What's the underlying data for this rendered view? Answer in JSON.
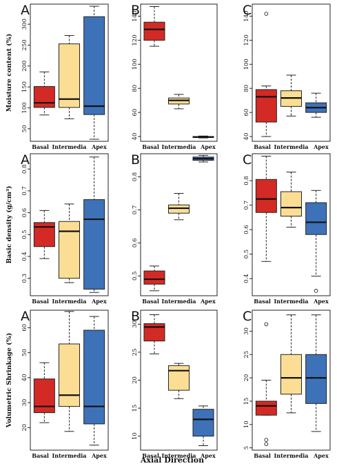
{
  "figure": {
    "xlabel": "Axial Direction",
    "colors": {
      "Basal": "#d42a25",
      "Intermedia": "#fbde94",
      "Apex": "#3e72b8"
    }
  },
  "chart_data": [
    {
      "type": "box",
      "panel": "A",
      "ylabel": "Moisture content (%)",
      "ylim": [
        20,
        348
      ],
      "yticks": [
        50,
        100,
        150,
        200,
        250,
        300
      ],
      "categories": [
        "Basal",
        "Intermedia",
        "Apex"
      ],
      "boxes": [
        {
          "min": 83,
          "q1": 101,
          "median": 112,
          "q3": 151,
          "max": 186,
          "outliers": []
        },
        {
          "min": 74,
          "q1": 101,
          "median": 121,
          "q3": 253,
          "max": 273,
          "outliers": []
        },
        {
          "min": 25,
          "q1": 84,
          "median": 104,
          "q3": 318,
          "max": 343,
          "outliers": []
        }
      ]
    },
    {
      "type": "box",
      "panel": "B",
      "ylabel": "",
      "ylim": [
        36,
        150
      ],
      "yticks": [
        40,
        60,
        80,
        100,
        120,
        140
      ],
      "categories": [
        "Basal",
        "Intermedia",
        "Apex"
      ],
      "boxes": [
        {
          "min": 115,
          "q1": 120,
          "median": 129,
          "q3": 135,
          "max": 148,
          "outliers": []
        },
        {
          "min": 63,
          "q1": 67,
          "median": 70,
          "q3": 72,
          "max": 75,
          "outliers": []
        },
        {
          "min": 38.8,
          "q1": 39.2,
          "median": 39.6,
          "q3": 40,
          "max": 40.4,
          "outliers": []
        }
      ]
    },
    {
      "type": "box",
      "panel": "C",
      "ylabel": "",
      "ylim": [
        36,
        150
      ],
      "yticks": [
        40,
        60,
        80,
        100,
        120,
        140
      ],
      "categories": [
        "Basal",
        "Intermedia",
        "Apex"
      ],
      "boxes": [
        {
          "min": 40,
          "q1": 52,
          "median": 73,
          "q3": 79,
          "max": 82,
          "outliers": [
            142
          ]
        },
        {
          "min": 57,
          "q1": 65,
          "median": 72,
          "q3": 78,
          "max": 91,
          "outliers": []
        },
        {
          "min": 56,
          "q1": 60,
          "median": 64,
          "q3": 68,
          "max": 76,
          "outliers": []
        }
      ]
    },
    {
      "type": "box",
      "panel": "A",
      "ylabel": "Basic density (g/cm³)",
      "ylim": [
        0.22,
        0.87
      ],
      "yticks": [
        0.3,
        0.4,
        0.5,
        0.6,
        0.7,
        0.8
      ],
      "categories": [
        "Basal",
        "Intermedia",
        "Apex"
      ],
      "boxes": [
        {
          "min": 0.39,
          "q1": 0.445,
          "median": 0.535,
          "q3": 0.555,
          "max": 0.61,
          "outliers": []
        },
        {
          "min": 0.28,
          "q1": 0.3,
          "median": 0.515,
          "q3": 0.56,
          "max": 0.64,
          "outliers": []
        },
        {
          "min": 0.235,
          "q1": 0.25,
          "median": 0.57,
          "q3": 0.66,
          "max": 0.855,
          "outliers": []
        }
      ]
    },
    {
      "type": "box",
      "panel": "B",
      "ylabel": "",
      "ylim": [
        0.44,
        0.87
      ],
      "yticks": [
        0.5,
        0.6,
        0.7,
        0.8
      ],
      "categories": [
        "Basal",
        "Intermedia",
        "Apex"
      ],
      "boxes": [
        {
          "min": 0.455,
          "q1": 0.475,
          "median": 0.49,
          "q3": 0.515,
          "max": 0.53,
          "outliers": []
        },
        {
          "min": 0.67,
          "q1": 0.69,
          "median": 0.705,
          "q3": 0.715,
          "max": 0.75,
          "outliers": []
        },
        {
          "min": 0.845,
          "q1": 0.85,
          "median": 0.855,
          "q3": 0.86,
          "max": 0.865,
          "outliers": []
        }
      ]
    },
    {
      "type": "box",
      "panel": "C",
      "ylabel": "",
      "ylim": [
        0.33,
        0.91
      ],
      "yticks": [
        0.4,
        0.5,
        0.6,
        0.7,
        0.8
      ],
      "categories": [
        "Basal",
        "Intermedia",
        "Apex"
      ],
      "boxes": [
        {
          "min": 0.47,
          "q1": 0.67,
          "median": 0.725,
          "q3": 0.805,
          "max": 0.9,
          "outliers": []
        },
        {
          "min": 0.61,
          "q1": 0.655,
          "median": 0.69,
          "q3": 0.755,
          "max": 0.835,
          "outliers": []
        },
        {
          "min": 0.41,
          "q1": 0.58,
          "median": 0.63,
          "q3": 0.71,
          "max": 0.76,
          "outliers": [
            0.35
          ]
        }
      ]
    },
    {
      "type": "box",
      "panel": "A",
      "ylabel": "Volumetric Shrinkage (%)",
      "ylim": [
        11,
        67
      ],
      "yticks": [
        20,
        30,
        40,
        50,
        60
      ],
      "categories": [
        "Basal",
        "Intermedia",
        "Apex"
      ],
      "boxes": [
        {
          "min": 22,
          "q1": 26,
          "median": 28.5,
          "q3": 39.5,
          "max": 46,
          "outliers": []
        },
        {
          "min": 18.5,
          "q1": 28.5,
          "median": 33,
          "q3": 53.5,
          "max": 66.5,
          "outliers": []
        },
        {
          "min": 13,
          "q1": 21.5,
          "median": 28.5,
          "q3": 59,
          "max": 64.5,
          "outliers": []
        }
      ]
    },
    {
      "type": "box",
      "panel": "B",
      "ylabel": "",
      "ylim": [
        7.5,
        32.5
      ],
      "yticks": [
        10,
        15,
        20,
        25,
        30
      ],
      "categories": [
        "Basal",
        "Intermedia",
        "Apex"
      ],
      "boxes": [
        {
          "min": 24.7,
          "q1": 27,
          "median": 29.5,
          "q3": 30.1,
          "max": 31.7,
          "outliers": []
        },
        {
          "min": 16.7,
          "q1": 18.2,
          "median": 21.7,
          "q3": 22.6,
          "max": 23,
          "outliers": []
        },
        {
          "min": 8.3,
          "q1": 10,
          "median": 13,
          "q3": 14.8,
          "max": 15.4,
          "outliers": []
        }
      ]
    },
    {
      "type": "box",
      "panel": "C",
      "ylabel": "",
      "ylim": [
        4.5,
        34.5
      ],
      "yticks": [
        5,
        10,
        15,
        20,
        25,
        30
      ],
      "categories": [
        "Basal",
        "Intermedia",
        "Apex"
      ],
      "boxes": [
        {
          "min": 12,
          "q1": 12,
          "median": 14,
          "q3": 15,
          "max": 19.5,
          "outliers": [
            31.5,
            6.7,
            5.8
          ]
        },
        {
          "min": 12.5,
          "q1": 16.5,
          "median": 20,
          "q3": 25,
          "max": 33.5,
          "outliers": []
        },
        {
          "min": 8.5,
          "q1": 14.5,
          "median": 20,
          "q3": 25,
          "max": 33.5,
          "outliers": []
        }
      ]
    }
  ]
}
